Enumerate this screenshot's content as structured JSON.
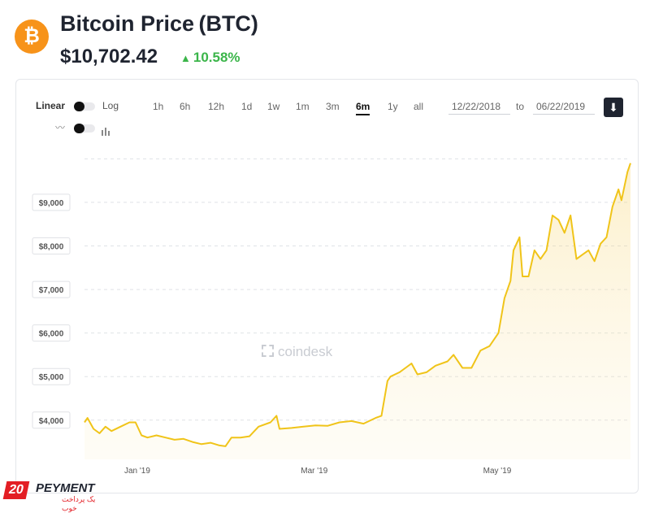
{
  "header": {
    "logo_glyph": "₿",
    "title": "Bitcoin Price (BTC)",
    "price": "$10,702.42",
    "change": "10.58%",
    "change_color": "#3bb54a"
  },
  "toolbar": {
    "scale_linear": "Linear",
    "scale_log": "Log",
    "ranges": [
      "1h",
      "6h",
      "12h",
      "1d",
      "1w",
      "1m",
      "3m",
      "6m",
      "1y",
      "all"
    ],
    "active_range": "6m",
    "date_from": "12/22/2018",
    "date_to_label": "to",
    "date_to": "06/22/2019",
    "download_icon": "download-icon"
  },
  "watermark": "coindesk",
  "brand": {
    "number": "20",
    "name": "PEYMENT",
    "tagline": "یک پرداخت خوب"
  },
  "chart_data": {
    "type": "area",
    "series": [
      {
        "color": "#f0c419",
        "points": [
          [
            "2018-12-22",
            3950
          ],
          [
            "2018-12-23",
            4050
          ],
          [
            "2018-12-25",
            3800
          ],
          [
            "2018-12-27",
            3700
          ],
          [
            "2018-12-29",
            3850
          ],
          [
            "2018-12-31",
            3750
          ],
          [
            "2019-01-03",
            3850
          ],
          [
            "2019-01-06",
            3950
          ],
          [
            "2019-01-08",
            3950
          ],
          [
            "2019-01-10",
            3650
          ],
          [
            "2019-01-12",
            3600
          ],
          [
            "2019-01-15",
            3650
          ],
          [
            "2019-01-18",
            3600
          ],
          [
            "2019-01-21",
            3550
          ],
          [
            "2019-01-24",
            3570
          ],
          [
            "2019-01-27",
            3500
          ],
          [
            "2019-01-30",
            3450
          ],
          [
            "2019-02-02",
            3480
          ],
          [
            "2019-02-05",
            3420
          ],
          [
            "2019-02-07",
            3400
          ],
          [
            "2019-02-09",
            3600
          ],
          [
            "2019-02-12",
            3600
          ],
          [
            "2019-02-15",
            3630
          ],
          [
            "2019-02-18",
            3850
          ],
          [
            "2019-02-22",
            3950
          ],
          [
            "2019-02-24",
            4100
          ],
          [
            "2019-02-25",
            3800
          ],
          [
            "2019-03-01",
            3820
          ],
          [
            "2019-03-05",
            3850
          ],
          [
            "2019-03-09",
            3880
          ],
          [
            "2019-03-13",
            3870
          ],
          [
            "2019-03-17",
            3950
          ],
          [
            "2019-03-21",
            3980
          ],
          [
            "2019-03-25",
            3920
          ],
          [
            "2019-03-29",
            4050
          ],
          [
            "2019-03-31",
            4100
          ],
          [
            "2019-04-02",
            4900
          ],
          [
            "2019-04-03",
            5000
          ],
          [
            "2019-04-06",
            5100
          ],
          [
            "2019-04-08",
            5200
          ],
          [
            "2019-04-10",
            5300
          ],
          [
            "2019-04-12",
            5050
          ],
          [
            "2019-04-15",
            5100
          ],
          [
            "2019-04-18",
            5250
          ],
          [
            "2019-04-22",
            5350
          ],
          [
            "2019-04-24",
            5500
          ],
          [
            "2019-04-27",
            5200
          ],
          [
            "2019-04-30",
            5200
          ],
          [
            "2019-05-03",
            5600
          ],
          [
            "2019-05-06",
            5700
          ],
          [
            "2019-05-09",
            6000
          ],
          [
            "2019-05-11",
            6800
          ],
          [
            "2019-05-13",
            7200
          ],
          [
            "2019-05-14",
            7900
          ],
          [
            "2019-05-16",
            8200
          ],
          [
            "2019-05-17",
            7300
          ],
          [
            "2019-05-19",
            7300
          ],
          [
            "2019-05-21",
            7900
          ],
          [
            "2019-05-23",
            7700
          ],
          [
            "2019-05-25",
            7900
          ],
          [
            "2019-05-27",
            8700
          ],
          [
            "2019-05-29",
            8600
          ],
          [
            "2019-05-31",
            8300
          ],
          [
            "2019-06-02",
            8700
          ],
          [
            "2019-06-04",
            7700
          ],
          [
            "2019-06-06",
            7800
          ],
          [
            "2019-06-08",
            7900
          ],
          [
            "2019-06-10",
            7650
          ],
          [
            "2019-06-12",
            8050
          ],
          [
            "2019-06-14",
            8200
          ],
          [
            "2019-06-16",
            8900
          ],
          [
            "2019-06-18",
            9300
          ],
          [
            "2019-06-19",
            9050
          ],
          [
            "2019-06-21",
            9700
          ],
          [
            "2019-06-22",
            9900
          ]
        ]
      }
    ],
    "x_range": [
      "2018-12-22",
      "2019-06-22"
    ],
    "x_ticks": [
      {
        "date": "2019-01-01",
        "label": "Jan '19"
      },
      {
        "date": "2019-03-01",
        "label": "Mar '19"
      },
      {
        "date": "2019-05-01",
        "label": "May '19"
      }
    ],
    "y_ticks": [
      "$4,000",
      "$5,000",
      "$6,000",
      "$7,000",
      "$8,000",
      "$9,000"
    ],
    "y_tick_values": [
      4000,
      5000,
      6000,
      7000,
      8000,
      9000
    ],
    "ylim": [
      3100,
      10100
    ],
    "grid": true,
    "gridlines": "dashed horizontal"
  }
}
